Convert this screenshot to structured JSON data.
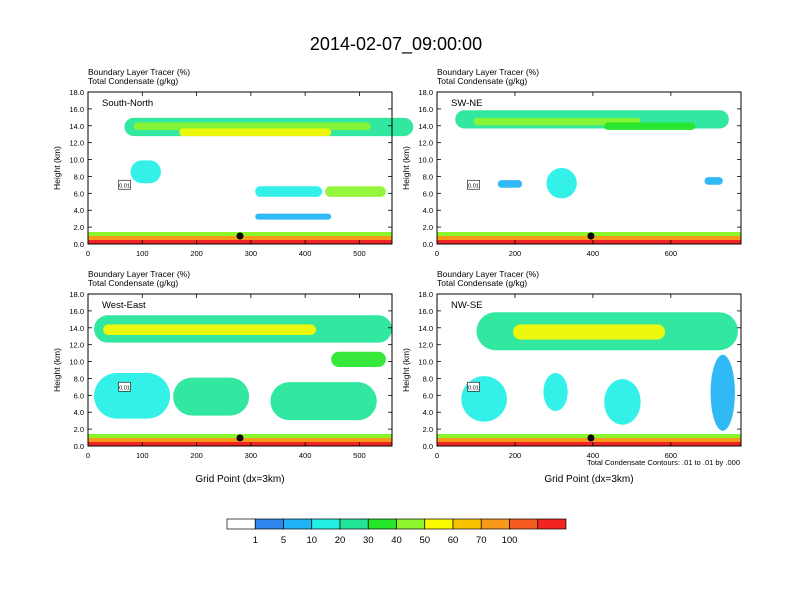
{
  "page": {
    "title": "2014-02-07_09:00:00"
  },
  "panel_header": {
    "line1_left": "Boundary Layer Tracer",
    "line1_unit": "(%)",
    "line2_left": "Total Condensate",
    "line2_unit": "(g/kg)"
  },
  "contour_note": "Total Condensate Contours: .01 to .01 by .000",
  "colorbar": {
    "labels": [
      "1",
      "5",
      "10",
      "20",
      "30",
      "40",
      "50",
      "60",
      "70",
      "100"
    ],
    "colors": [
      "#ffffff",
      "#2e86ee",
      "#1fb3f5",
      "#22f0e6",
      "#21e597",
      "#25e628",
      "#8df52c",
      "#fbfa00",
      "#f9c200",
      "#f8991a",
      "#f65c1f",
      "#f22323"
    ]
  },
  "chart_data": [
    {
      "type": "heatmap",
      "panel_label": "South-North",
      "xlabel": "",
      "ylabel": "Height (km)",
      "xlim": [
        0,
        560
      ],
      "ylim": [
        0,
        18
      ],
      "xticks": [
        "0",
        "100",
        "200",
        "300",
        "400",
        "500"
      ],
      "yticks": [
        "0.0",
        "2.0",
        "4.0",
        "6.0",
        "8.0",
        "10.0",
        "12.0",
        "14.0",
        "16.0",
        "18.0"
      ],
      "marker_x": 280,
      "contour_label": "0.01"
    },
    {
      "type": "heatmap",
      "panel_label": "SW-NE",
      "xlabel": "",
      "ylabel": "Height (km)",
      "xlim": [
        0,
        780
      ],
      "ylim": [
        0,
        18
      ],
      "xticks": [
        "0",
        "200",
        "400",
        "600"
      ],
      "yticks": [
        "0.0",
        "2.0",
        "4.0",
        "6.0",
        "8.0",
        "10.0",
        "12.0",
        "14.0",
        "16.0",
        "18.0"
      ],
      "marker_x": 395,
      "contour_label": "0.01"
    },
    {
      "type": "heatmap",
      "panel_label": "West-East",
      "xlabel": "Grid Point (dx=3km)",
      "ylabel": "Height (km)",
      "xlim": [
        0,
        560
      ],
      "ylim": [
        0,
        18
      ],
      "xticks": [
        "0",
        "100",
        "200",
        "300",
        "400",
        "500"
      ],
      "yticks": [
        "0.0",
        "2.0",
        "4.0",
        "6.0",
        "8.0",
        "10.0",
        "12.0",
        "14.0",
        "16.0",
        "18.0"
      ],
      "marker_x": 280,
      "contour_label": "0.01"
    },
    {
      "type": "heatmap",
      "panel_label": "NW-SE",
      "xlabel": "Grid Point (dx=3km)",
      "ylabel": "Height (km)",
      "xlim": [
        0,
        780
      ],
      "ylim": [
        0,
        18
      ],
      "xticks": [
        "0",
        "200",
        "400",
        "600"
      ],
      "yticks": [
        "0.0",
        "2.0",
        "4.0",
        "6.0",
        "8.0",
        "10.0",
        "12.0",
        "14.0",
        "16.0",
        "18.0"
      ],
      "marker_x": 395,
      "contour_label": "0.01"
    }
  ]
}
